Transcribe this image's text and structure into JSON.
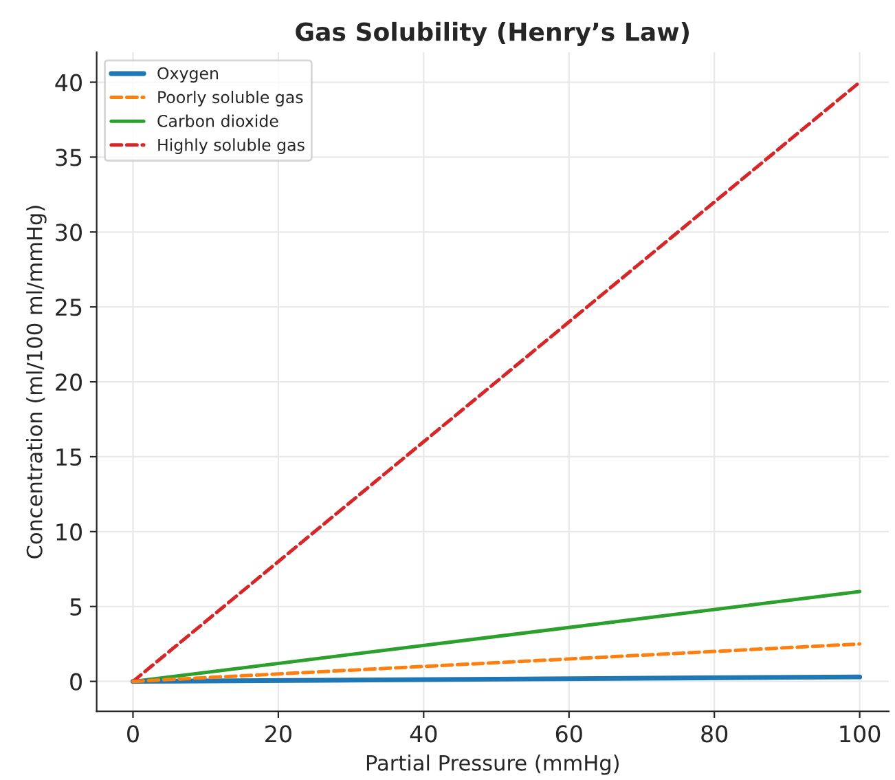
{
  "chart_data": {
    "type": "line",
    "title": "Gas Solubility (Henry’s Law)",
    "xlabel": "Partial Pressure (mmHg)",
    "ylabel": "Concentration (ml/100 ml/mmHg)",
    "x": [
      0,
      100
    ],
    "series": [
      {
        "name": "Oxygen",
        "color": "#1f77b4",
        "values": [
          0,
          0.3
        ],
        "line_style": "solid"
      },
      {
        "name": "Poorly soluble gas",
        "color": "#ff7f0e",
        "values": [
          0,
          2.5
        ],
        "line_style": "dashed"
      },
      {
        "name": "Carbon dioxide",
        "color": "#2ca02c",
        "values": [
          0,
          6
        ],
        "line_style": "solid"
      },
      {
        "name": "Highly soluble gas",
        "color": "#d62728",
        "values": [
          0,
          40
        ],
        "line_style": "dashed"
      }
    ],
    "xlim": [
      -5,
      104
    ],
    "xticks": [
      0,
      20,
      40,
      60,
      80,
      100
    ],
    "ylim": [
      -2,
      42
    ],
    "yticks": [
      0,
      5,
      10,
      15,
      20,
      25,
      30,
      35,
      40
    ],
    "grid": true,
    "legend": "top left"
  }
}
